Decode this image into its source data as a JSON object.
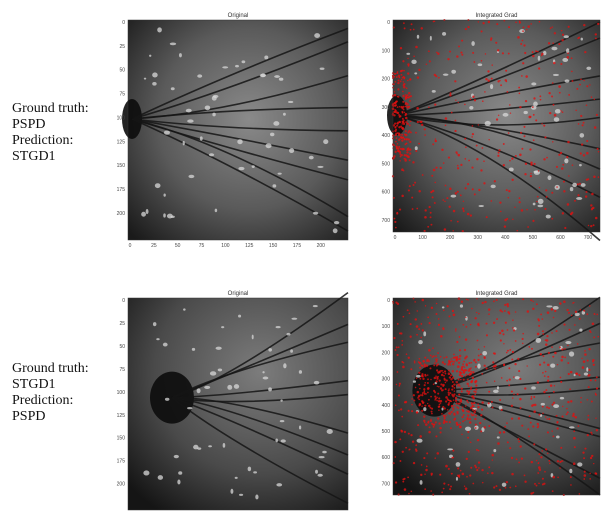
{
  "rows": [
    {
      "ground_truth_label": "Ground truth:",
      "ground_truth": "PSPD",
      "prediction_label": "Prediction:",
      "prediction": "STGD1",
      "panels": [
        {
          "title": "Original",
          "xticks": [
            "0",
            "25",
            "50",
            "75",
            "100",
            "125",
            "150",
            "175",
            "200"
          ],
          "yticks": [
            "0",
            "25",
            "50",
            "75",
            "100",
            "125",
            "150",
            "175",
            "200"
          ]
        },
        {
          "title": "Integrated Grad",
          "xticks": [
            "0",
            "100",
            "200",
            "300",
            "400",
            "500",
            "600",
            "700"
          ],
          "yticks": [
            "0",
            "100",
            "200",
            "300",
            "400",
            "500",
            "600",
            "700"
          ]
        }
      ]
    },
    {
      "ground_truth_label": "Ground truth:",
      "ground_truth": "STGD1",
      "prediction_label": "Prediction:",
      "prediction": "PSPD",
      "panels": [
        {
          "title": "Original",
          "xticks": [],
          "yticks": [
            "0",
            "25",
            "50",
            "75",
            "100",
            "125",
            "150",
            "175",
            "200"
          ]
        },
        {
          "title": "Integrated Grad",
          "xticks": [],
          "yticks": [
            "0",
            "100",
            "200",
            "300",
            "400",
            "500",
            "600",
            "700"
          ]
        }
      ]
    }
  ]
}
